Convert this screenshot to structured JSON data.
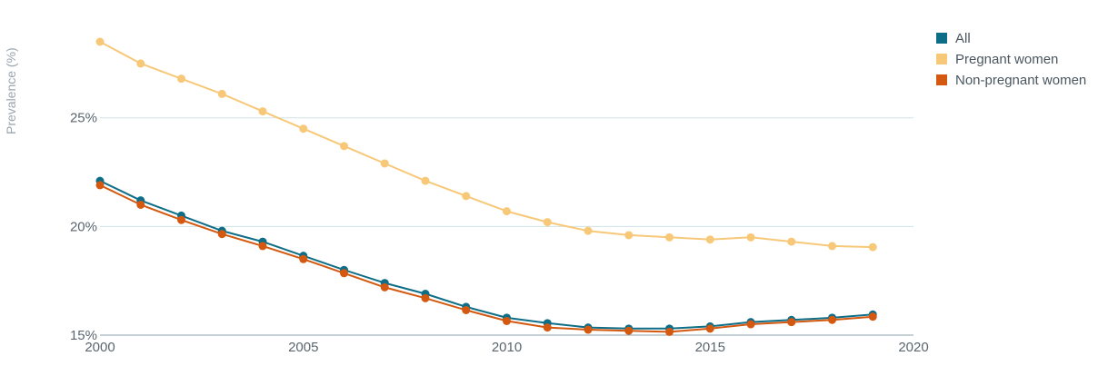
{
  "chart_data": {
    "type": "line",
    "ylabel": "Prevalence (%)",
    "xlim": [
      2000,
      2020
    ],
    "ylim": [
      15,
      30
    ],
    "x_ticks": [
      2000,
      2005,
      2010,
      2015,
      2020
    ],
    "y_ticks": [
      15,
      20,
      25
    ],
    "y_tick_labels": [
      "15%",
      "20%",
      "25%"
    ],
    "x_tick_labels": [
      "2000",
      "2005",
      "2010",
      "2015",
      "2020"
    ],
    "grid": true,
    "legend_position": "top-right",
    "x": [
      2000,
      2001,
      2002,
      2003,
      2004,
      2005,
      2006,
      2007,
      2008,
      2009,
      2010,
      2011,
      2012,
      2013,
      2014,
      2015,
      2016,
      2017,
      2018,
      2019
    ],
    "series": [
      {
        "name": "All",
        "color": "#0f6e87",
        "values": [
          22.1,
          21.2,
          20.5,
          19.8,
          19.3,
          18.65,
          18.0,
          17.4,
          16.9,
          16.3,
          15.8,
          15.55,
          15.35,
          15.3,
          15.3,
          15.4,
          15.6,
          15.7,
          15.8,
          15.95
        ]
      },
      {
        "name": "Pregnant women",
        "color": "#f8c879",
        "values": [
          28.5,
          27.5,
          26.8,
          26.1,
          25.3,
          24.5,
          23.7,
          22.9,
          22.1,
          21.4,
          20.7,
          20.2,
          19.8,
          19.6,
          19.5,
          19.4,
          19.5,
          19.3,
          19.1,
          19.05
        ]
      },
      {
        "name": "Non-pregnant women",
        "color": "#d4580f",
        "values": [
          21.9,
          21.0,
          20.3,
          19.65,
          19.1,
          18.5,
          17.85,
          17.2,
          16.7,
          16.15,
          15.65,
          15.35,
          15.25,
          15.2,
          15.15,
          15.3,
          15.5,
          15.6,
          15.7,
          15.85
        ]
      }
    ]
  }
}
